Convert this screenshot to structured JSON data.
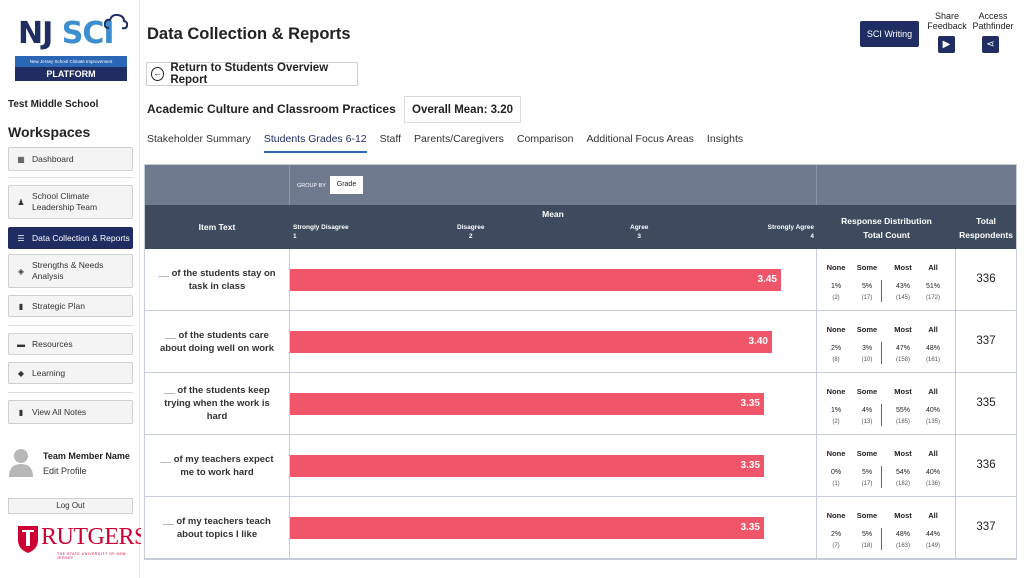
{
  "sidebar": {
    "logo": {
      "nj": "NJ",
      "sci": "SCI",
      "tagline": "New Jersey School Climate Improvement",
      "platform": "PLATFORM"
    },
    "school": "Test Middle School",
    "workspaces_title": "Workspaces",
    "items": [
      {
        "label": "Dashboard",
        "icon": "dashboard-icon"
      },
      {
        "label": "School Climate Leadership Team",
        "icon": "team-icon"
      },
      {
        "label": "Data Collection & Reports",
        "icon": "report-icon"
      },
      {
        "label": "Strengths & Needs Analysis",
        "icon": "layers-icon"
      },
      {
        "label": "Strategic Plan",
        "icon": "chart-icon"
      },
      {
        "label": "Resources",
        "icon": "folder-icon"
      },
      {
        "label": "Learning",
        "icon": "graduation-icon"
      },
      {
        "label": "View All Notes",
        "icon": "note-icon"
      }
    ],
    "team_member": {
      "name": "Team Member Name",
      "edit": "Edit Profile"
    },
    "logout": "Log Out",
    "rutgers": {
      "word": "RUTGERS",
      "sub": "THE STATE UNIVERSITY OF NEW JERSEY"
    }
  },
  "header": {
    "title": "Data Collection & Reports",
    "sci_writing": "SCI Writing",
    "share_feedback": "Share Feedback",
    "access_pathfinder": "Access Pathfinder"
  },
  "back_button": "Return to Students Overview Report",
  "section": {
    "title": "Academic Culture and Classroom Practices",
    "overall_mean": "Overall Mean: 3.20"
  },
  "tabs": [
    {
      "label": "Stakeholder Summary",
      "active": false
    },
    {
      "label": "Students Grades 6-12",
      "active": true
    },
    {
      "label": "Staff",
      "active": false
    },
    {
      "label": "Parents/Caregivers",
      "active": false
    },
    {
      "label": "Comparison",
      "active": false
    },
    {
      "label": "Additional Focus Areas",
      "active": false
    },
    {
      "label": "Insights",
      "active": false
    }
  ],
  "table": {
    "group_by_label": "GROUP BY",
    "group_by_value": "Grade",
    "headers": {
      "item_text": "Item Text",
      "mean": "Mean",
      "scale": [
        {
          "label": "Strongly Disagree",
          "value": "1"
        },
        {
          "label": "Disagree",
          "value": "2"
        },
        {
          "label": "Agree",
          "value": "3"
        },
        {
          "label": "Strongly Agree",
          "value": "4"
        }
      ],
      "distribution": "Response Distribution",
      "total_count": "Total Count",
      "total_respondents": "Total Respondents"
    },
    "dist_headers": [
      "None",
      "Some",
      "Most",
      "All"
    ],
    "rows": [
      {
        "item": "__ of the students stay on task in class",
        "mean": 3.45,
        "mean_label": "3.45",
        "pct": [
          "1%",
          "5%",
          "43%",
          "51%"
        ],
        "counts": [
          "(2)",
          "(17)",
          "(145)",
          "(172)"
        ],
        "total": "336"
      },
      {
        "item": "__ of the students care about doing well on work",
        "mean": 3.4,
        "mean_label": "3.40",
        "pct": [
          "2%",
          "3%",
          "47%",
          "48%"
        ],
        "counts": [
          "(8)",
          "(10)",
          "(158)",
          "(161)"
        ],
        "total": "337"
      },
      {
        "item": "__ of the students keep trying when the work is hard",
        "mean": 3.35,
        "mean_label": "3.35",
        "pct": [
          "1%",
          "4%",
          "55%",
          "40%"
        ],
        "counts": [
          "(2)",
          "(13)",
          "(185)",
          "(135)"
        ],
        "total": "335"
      },
      {
        "item": "__ of my teachers expect me to work hard",
        "mean": 3.35,
        "mean_label": "3.35",
        "pct": [
          "0%",
          "5%",
          "54%",
          "40%"
        ],
        "counts": [
          "(1)",
          "(17)",
          "(182)",
          "(136)"
        ],
        "total": "336"
      },
      {
        "item": "__ of my teachers teach about topics I like",
        "mean": 3.35,
        "mean_label": "3.35",
        "pct": [
          "2%",
          "5%",
          "48%",
          "44%"
        ],
        "counts": [
          "(7)",
          "(18)",
          "(163)",
          "(149)"
        ],
        "total": "337"
      }
    ]
  },
  "colors": {
    "navy": "#1f2d63",
    "bar": "#f0566a",
    "header_dark": "#3e4a5e",
    "header_light": "#6f7a8e"
  }
}
